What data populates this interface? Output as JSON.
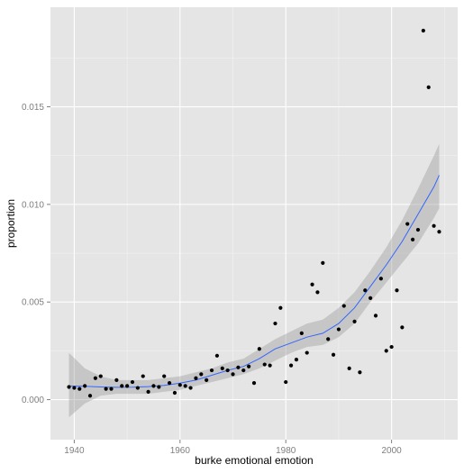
{
  "chart_data": {
    "type": "scatter",
    "title": "",
    "xlabel": "burke emotional emotion",
    "ylabel": "proportion",
    "xlim": [
      1935.5,
      2012.5
    ],
    "ylim": [
      -0.00205,
      0.0201
    ],
    "x_ticks": [
      1940,
      1960,
      1980,
      2000
    ],
    "x_tick_labels": [
      "1940",
      "1960",
      "1980",
      "2000"
    ],
    "y_ticks": [
      0,
      0.005,
      0.01,
      0.015
    ],
    "y_tick_labels": [
      "0.000",
      "0.005",
      "0.010",
      "0.015"
    ],
    "grid": true,
    "colors": {
      "panel_background": "#e5e5e5",
      "grid_major": "#ffffff",
      "grid_minor": "#f2f2f2",
      "points": "#000000",
      "smooth_line": "#3366ff",
      "confidence_band": "#999999"
    },
    "points": [
      {
        "x": 1939,
        "y": 0.00065
      },
      {
        "x": 1940,
        "y": 0.0006
      },
      {
        "x": 1941,
        "y": 0.00055
      },
      {
        "x": 1942,
        "y": 0.0007
      },
      {
        "x": 1943,
        "y": 0.0002
      },
      {
        "x": 1944,
        "y": 0.0011
      },
      {
        "x": 1945,
        "y": 0.0012
      },
      {
        "x": 1946,
        "y": 0.00055
      },
      {
        "x": 1947,
        "y": 0.00055
      },
      {
        "x": 1948,
        "y": 0.001
      },
      {
        "x": 1949,
        "y": 0.0007
      },
      {
        "x": 1950,
        "y": 0.0007
      },
      {
        "x": 1951,
        "y": 0.0009
      },
      {
        "x": 1952,
        "y": 0.0006
      },
      {
        "x": 1953,
        "y": 0.0012
      },
      {
        "x": 1954,
        "y": 0.0004
      },
      {
        "x": 1955,
        "y": 0.0007
      },
      {
        "x": 1956,
        "y": 0.00065
      },
      {
        "x": 1957,
        "y": 0.0012
      },
      {
        "x": 1958,
        "y": 0.00085
      },
      {
        "x": 1959,
        "y": 0.00035
      },
      {
        "x": 1960,
        "y": 0.00075
      },
      {
        "x": 1961,
        "y": 0.0007
      },
      {
        "x": 1962,
        "y": 0.0006
      },
      {
        "x": 1963,
        "y": 0.0011
      },
      {
        "x": 1964,
        "y": 0.0013
      },
      {
        "x": 1965,
        "y": 0.001
      },
      {
        "x": 1966,
        "y": 0.0015
      },
      {
        "x": 1967,
        "y": 0.00225
      },
      {
        "x": 1968,
        "y": 0.0016
      },
      {
        "x": 1969,
        "y": 0.0015
      },
      {
        "x": 1970,
        "y": 0.0013
      },
      {
        "x": 1971,
        "y": 0.00165
      },
      {
        "x": 1972,
        "y": 0.0015
      },
      {
        "x": 1973,
        "y": 0.0017
      },
      {
        "x": 1974,
        "y": 0.00085
      },
      {
        "x": 1975,
        "y": 0.0026
      },
      {
        "x": 1976,
        "y": 0.0018
      },
      {
        "x": 1977,
        "y": 0.00175
      },
      {
        "x": 1978,
        "y": 0.0039
      },
      {
        "x": 1979,
        "y": 0.0047
      },
      {
        "x": 1980,
        "y": 0.0009
      },
      {
        "x": 1981,
        "y": 0.00175
      },
      {
        "x": 1982,
        "y": 0.00205
      },
      {
        "x": 1983,
        "y": 0.0034
      },
      {
        "x": 1984,
        "y": 0.0024
      },
      {
        "x": 1985,
        "y": 0.0059
      },
      {
        "x": 1986,
        "y": 0.0055
      },
      {
        "x": 1987,
        "y": 0.007
      },
      {
        "x": 1988,
        "y": 0.0031
      },
      {
        "x": 1989,
        "y": 0.0023
      },
      {
        "x": 1990,
        "y": 0.0036
      },
      {
        "x": 1991,
        "y": 0.0048
      },
      {
        "x": 1992,
        "y": 0.0016
      },
      {
        "x": 1993,
        "y": 0.004
      },
      {
        "x": 1994,
        "y": 0.0014
      },
      {
        "x": 1995,
        "y": 0.0056
      },
      {
        "x": 1996,
        "y": 0.0052
      },
      {
        "x": 1997,
        "y": 0.0043
      },
      {
        "x": 1998,
        "y": 0.0062
      },
      {
        "x": 1999,
        "y": 0.0025
      },
      {
        "x": 2000,
        "y": 0.0027
      },
      {
        "x": 2001,
        "y": 0.0056
      },
      {
        "x": 2002,
        "y": 0.0037
      },
      {
        "x": 2003,
        "y": 0.009
      },
      {
        "x": 2004,
        "y": 0.0082
      },
      {
        "x": 2005,
        "y": 0.0087
      },
      {
        "x": 2006,
        "y": 0.0189
      },
      {
        "x": 2007,
        "y": 0.016
      },
      {
        "x": 2008,
        "y": 0.0089
      },
      {
        "x": 2009,
        "y": 0.0086
      }
    ],
    "smooth": {
      "x": [
        1939,
        1942,
        1945,
        1948,
        1951,
        1954,
        1957,
        1960,
        1963,
        1966,
        1969,
        1972,
        1975,
        1978,
        1981,
        1984,
        1987,
        1990,
        1993,
        1996,
        1999,
        2002,
        2005,
        2008,
        2009
      ],
      "y": [
        0.0007,
        0.00068,
        0.00065,
        0.00063,
        0.00064,
        0.00067,
        0.00073,
        0.00085,
        0.001,
        0.00125,
        0.0015,
        0.0017,
        0.0021,
        0.0026,
        0.0029,
        0.0032,
        0.0034,
        0.0039,
        0.0047,
        0.0058,
        0.0069,
        0.0081,
        0.0095,
        0.0109,
        0.0115
      ],
      "lower": [
        -0.0009,
        -0.0002,
        0.0002,
        0.0003,
        0.0003,
        0.0003,
        0.0004,
        0.0005,
        0.0007,
        0.0009,
        0.0011,
        0.0013,
        0.0016,
        0.002,
        0.0024,
        0.0027,
        0.0028,
        0.0032,
        0.0039,
        0.005,
        0.006,
        0.007,
        0.008,
        0.0093,
        0.0098
      ],
      "upper": [
        0.0024,
        0.0016,
        0.0012,
        0.001,
        0.001,
        0.001,
        0.0011,
        0.0012,
        0.0014,
        0.0016,
        0.0019,
        0.0021,
        0.0026,
        0.0031,
        0.0035,
        0.0039,
        0.0041,
        0.0047,
        0.0055,
        0.0066,
        0.0078,
        0.0092,
        0.0108,
        0.0125,
        0.0131
      ]
    }
  }
}
